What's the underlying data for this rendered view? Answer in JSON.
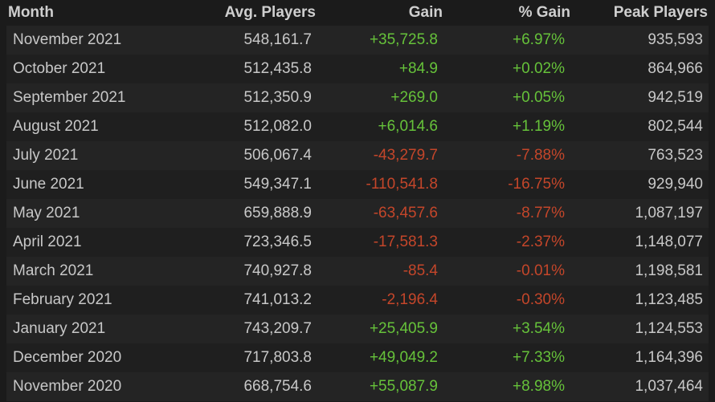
{
  "table": {
    "header": [
      "Month",
      "Avg. Players",
      "Gain",
      "% Gain",
      "Peak Players"
    ],
    "rows": [
      [
        "November 2021",
        "548,161.7",
        "+35,725.8",
        "+6.97%",
        "935,593"
      ],
      [
        "October 2021",
        "512,435.8",
        "+84.9",
        "+0.02%",
        "864,966"
      ],
      [
        "September 2021",
        "512,350.9",
        "+269.0",
        "+0.05%",
        "942,519"
      ],
      [
        "August 2021",
        "512,082.0",
        "+6,014.6",
        "+1.19%",
        "802,544"
      ],
      [
        "July 2021",
        "506,067.4",
        "-43,279.7",
        "-7.88%",
        "763,523"
      ],
      [
        "June 2021",
        "549,347.1",
        "-110,541.8",
        "-16.75%",
        "929,940"
      ],
      [
        "May 2021",
        "659,888.9",
        "-63,457.6",
        "-8.77%",
        "1,087,197"
      ],
      [
        "April 2021",
        "723,346.5",
        "-17,581.3",
        "-2.37%",
        "1,148,077"
      ],
      [
        "March 2021",
        "740,927.8",
        "-85.4",
        "-0.01%",
        "1,198,581"
      ],
      [
        "February 2021",
        "741,013.2",
        "-2,196.4",
        "-0.30%",
        "1,123,485"
      ],
      [
        "January 2021",
        "743,209.7",
        "+25,405.9",
        "+3.54%",
        "1,124,553"
      ],
      [
        "December 2020",
        "717,803.8",
        "+49,049.2",
        "+7.33%",
        "1,164,396"
      ],
      [
        "November 2020",
        "668,754.6",
        "+55,087.9",
        "+8.98%",
        "1,037,464"
      ]
    ]
  }
}
